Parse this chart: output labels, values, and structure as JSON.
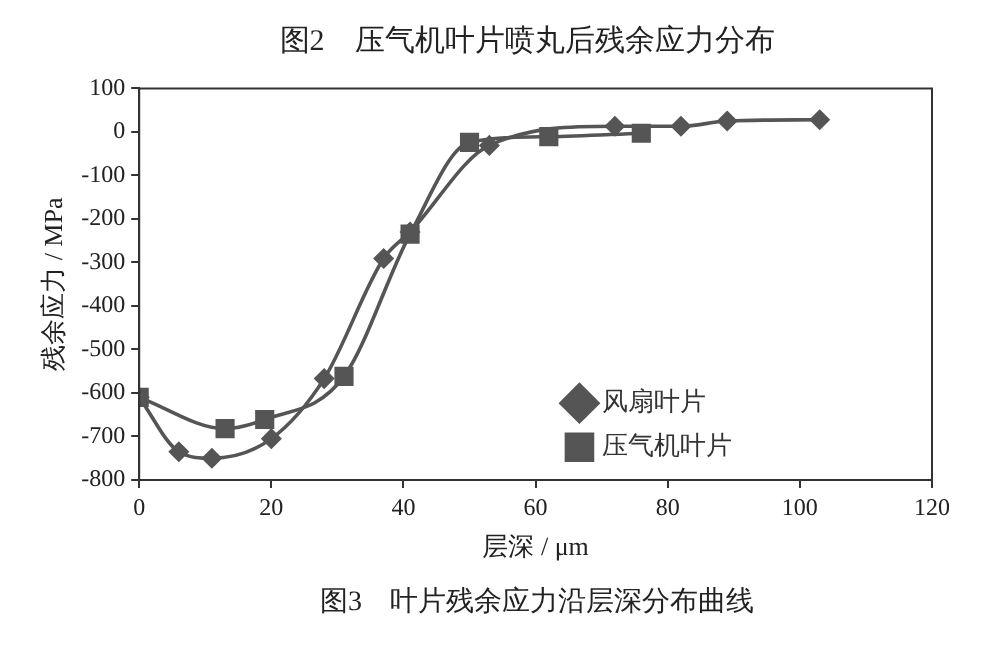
{
  "chart_data": {
    "type": "line",
    "title": "图3　叶片残余应力沿层深分布曲线",
    "annotations": [
      "图2　压气机叶片喷丸后残余应力分布"
    ],
    "xlabel": "层深 / μm",
    "ylabel": "残余应力 / MPa",
    "xlim": [
      0,
      120
    ],
    "xticks": [
      0,
      20,
      40,
      60,
      80,
      100,
      120
    ],
    "ylim": [
      -800,
      100
    ],
    "yticks": [
      -800,
      -700,
      -600,
      -500,
      -400,
      -300,
      -200,
      -100,
      0,
      100
    ],
    "grid": false,
    "legend": "right",
    "series": [
      {
        "name": "风扇叶片",
        "color": "#555555",
        "marker": "diamond",
        "x": [
          0,
          6,
          11,
          20,
          28,
          37,
          41,
          53,
          72,
          82,
          89,
          103
        ],
        "values": [
          -610,
          -735,
          -750,
          -705,
          -567,
          -291,
          -230,
          -31,
          13,
          13,
          25,
          28
        ]
      },
      {
        "name": "压气机叶片",
        "color": "#555555",
        "marker": "square",
        "x": [
          0,
          13,
          19,
          31,
          41,
          50,
          62,
          76
        ],
        "values": [
          -610,
          -682,
          -661,
          -562,
          -235,
          -24,
          -11,
          -3
        ]
      }
    ]
  }
}
